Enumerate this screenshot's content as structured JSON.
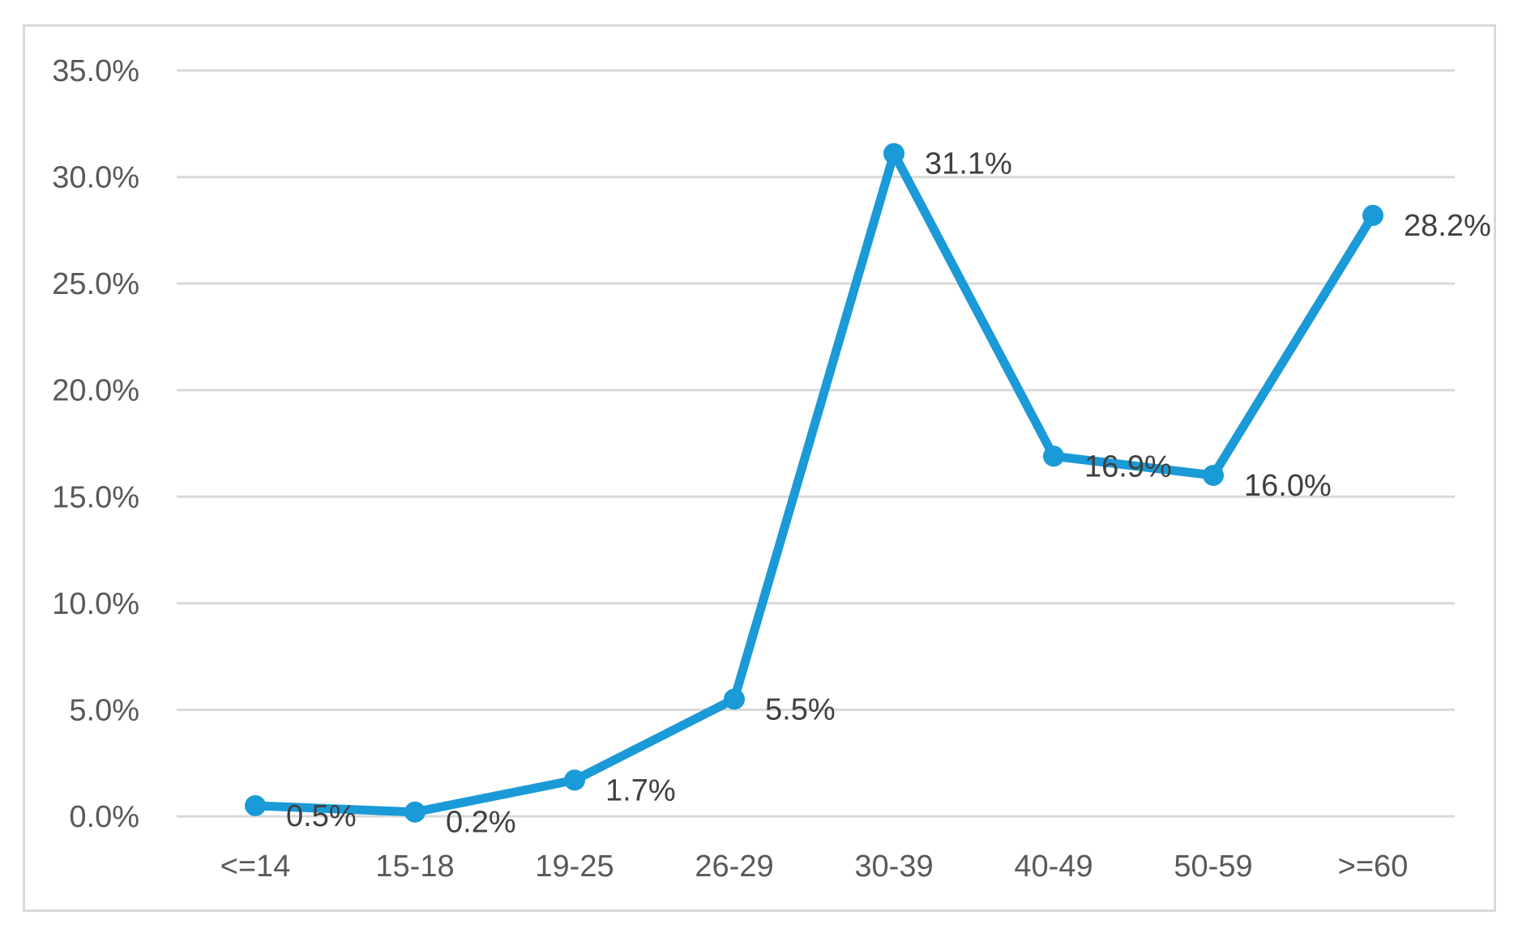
{
  "chart_data": {
    "type": "line",
    "title": "",
    "xlabel": "",
    "ylabel": "",
    "categories": [
      "<=14",
      "15-18",
      "19-25",
      "26-29",
      "30-39",
      "40-49",
      "50-59",
      ">=60"
    ],
    "series": [
      {
        "values": [
          0.5,
          0.2,
          1.7,
          5.5,
          31.1,
          16.9,
          16.0,
          28.2
        ],
        "data_labels": [
          "0.5%",
          "0.2%",
          "1.7%",
          "5.5%",
          "31.1%",
          "16.9%",
          "16.0%",
          "28.2%"
        ],
        "color": "#1a9ad6"
      }
    ],
    "ylim": [
      0,
      35
    ],
    "yticks": [
      0,
      5,
      10,
      15,
      20,
      25,
      30,
      35
    ],
    "ytick_labels": [
      "0.0%",
      "5.0%",
      "10.0%",
      "15.0%",
      "20.0%",
      "25.0%",
      "30.0%",
      "35.0%"
    ],
    "grid": true,
    "legend": "none",
    "gridline_color": "#d9d9d9",
    "frame_color": "#d9d9d9"
  }
}
